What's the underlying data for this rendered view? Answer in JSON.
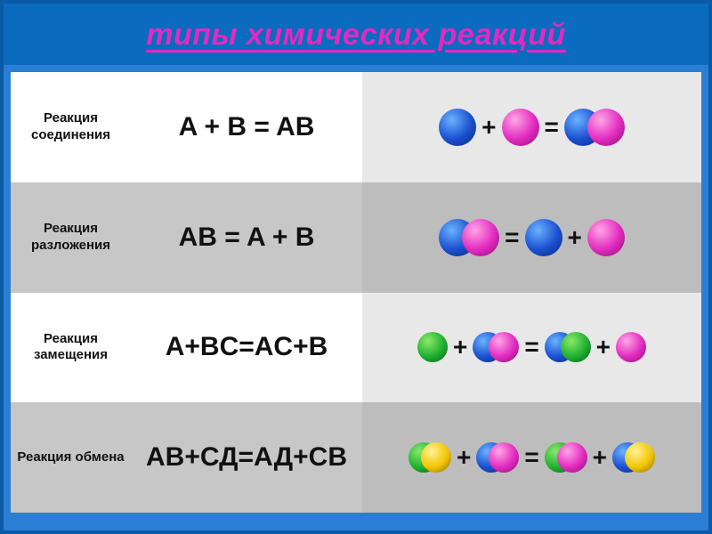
{
  "page": {
    "title": "типы химических реакций",
    "border_color": "#0b5aa6",
    "title_bg": "#0a6bbf",
    "title_color": "#e22ac0",
    "body_bg": "#2a7fd4"
  },
  "colors": {
    "A_blue": "#1a4fd0",
    "B_magenta": "#e22ac0",
    "C_green": "#1fb030",
    "D_yellow": "#f2c600",
    "row_light_label": "#ffffff",
    "row_dark_label": "#c7c7c7",
    "row_light_vis": "#e8e8e8",
    "row_dark_vis": "#bdbdbd"
  },
  "table": {
    "type": "table",
    "columns": [
      "name",
      "equation",
      "visual"
    ],
    "rows": [
      {
        "shade": "light",
        "name": "Реакция соединения",
        "equation": "A + B = AB",
        "visual": [
          {
            "t": "atom",
            "c": "blue"
          },
          {
            "t": "op",
            "v": "+"
          },
          {
            "t": "atom",
            "c": "magenta"
          },
          {
            "t": "op",
            "v": "="
          },
          {
            "t": "mol",
            "atoms": [
              "blue",
              "magenta"
            ]
          }
        ]
      },
      {
        "shade": "dark",
        "name": "Реакция разложения",
        "equation": "AB = A + B",
        "visual": [
          {
            "t": "mol",
            "atoms": [
              "blue",
              "magenta"
            ]
          },
          {
            "t": "op",
            "v": "="
          },
          {
            "t": "atom",
            "c": "blue"
          },
          {
            "t": "op",
            "v": "+"
          },
          {
            "t": "atom",
            "c": "magenta"
          }
        ]
      },
      {
        "shade": "light",
        "name": "Реакция замещения",
        "equation": "A+BC=AC+B",
        "visual": [
          {
            "t": "atom",
            "c": "green",
            "size": "sm"
          },
          {
            "t": "op",
            "v": "+"
          },
          {
            "t": "mol",
            "atoms": [
              "blue",
              "magenta"
            ],
            "size": "sm"
          },
          {
            "t": "op",
            "v": "="
          },
          {
            "t": "mol",
            "atoms": [
              "blue",
              "green"
            ],
            "size": "sm"
          },
          {
            "t": "op",
            "v": "+"
          },
          {
            "t": "atom",
            "c": "magenta",
            "size": "sm"
          }
        ]
      },
      {
        "shade": "dark",
        "name": "Реакция обмена",
        "equation": "АВ+СД=АД+СВ",
        "visual": [
          {
            "t": "mol",
            "atoms": [
              "green",
              "yellow"
            ],
            "size": "sm",
            "tight": true
          },
          {
            "t": "op",
            "v": "+"
          },
          {
            "t": "mol",
            "atoms": [
              "blue",
              "magenta"
            ],
            "size": "sm",
            "tight": true
          },
          {
            "t": "op",
            "v": "="
          },
          {
            "t": "mol",
            "atoms": [
              "green",
              "magenta"
            ],
            "size": "sm",
            "tight": true
          },
          {
            "t": "op",
            "v": "+"
          },
          {
            "t": "mol",
            "atoms": [
              "blue",
              "yellow"
            ],
            "size": "sm",
            "tight": true
          }
        ]
      }
    ]
  }
}
